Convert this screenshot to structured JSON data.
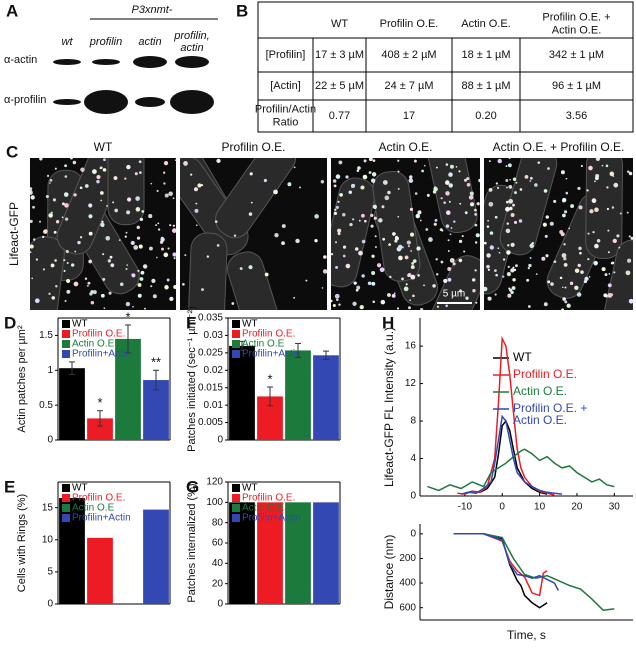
{
  "panel_a": {
    "panel": "A",
    "promoter": "P3xnmt-",
    "lanes": [
      "wt",
      "profilin",
      "actin",
      "profilin, actin"
    ],
    "rows": [
      "α-actin",
      "α-profilin"
    ]
  },
  "panel_b": {
    "panel": "B",
    "header": [
      "WT",
      "Profilin O.E.",
      "Actin O.E.",
      "Profilin O.E. + Actin O.E."
    ],
    "rows": [
      [
        "[Profilin]",
        "17 ± 3 µM",
        "408 ± 2 µM",
        "18 ± 1 µM",
        "342 ± 1 µM"
      ],
      [
        "[Actin]",
        "22 ± 5 µM",
        "24 ± 7 µM",
        "88 ± 1 µM",
        "96 ± 1 µM"
      ],
      [
        "Profilin/Actin Ratio",
        "0.77",
        "17",
        "0.20",
        "3.56"
      ]
    ]
  },
  "panel_c": {
    "panel": "C",
    "titles": [
      "WT",
      "Profilin O.E.",
      "Actin O.E.",
      "Actin O.E. + Profilin O.E."
    ],
    "ylabel": "Lifeact-GFP",
    "scale_bar": "5 µm"
  },
  "chart_data": [
    {
      "panel": "D",
      "type": "bar",
      "ylabel": "Actin patches per µm²",
      "categories": [
        "WT",
        "Profilin O.E.",
        "Actin O.E",
        "Profilin+Actin"
      ],
      "colors": [
        "#000000",
        "#ed1c24",
        "#1b7a3c",
        "#3348b3"
      ],
      "values": [
        1.03,
        0.31,
        1.45,
        0.86
      ],
      "errors": [
        0.09,
        0.11,
        0.2,
        0.14
      ],
      "annotations": [
        null,
        "*",
        "*",
        "**"
      ],
      "ylim": [
        0,
        1.75
      ],
      "yticks": [
        0,
        0.5,
        1,
        1.5
      ],
      "legend": "upper left"
    },
    {
      "panel": "E",
      "type": "bar",
      "ylabel": "Cells with Rings (%)",
      "categories": [
        "WT",
        "Profilin O.E.",
        "Actin O.E",
        "Profilin+Actin"
      ],
      "colors": [
        "#000000",
        "#ed1c24",
        "#1b7a3c",
        "#3348b3"
      ],
      "values": [
        16.5,
        10.3,
        null,
        14.7
      ],
      "ylim": [
        0,
        19
      ],
      "yticks": [
        0,
        5,
        10,
        15
      ],
      "legend": "upper left"
    },
    {
      "panel": "F",
      "type": "bar",
      "ylabel": "Patches initiated (sec⁻¹ µm⁻²)",
      "categories": [
        "WT",
        "Profilin O.E.",
        "Actin O.E",
        "Profilin+Actin"
      ],
      "colors": [
        "#000000",
        "#ed1c24",
        "#1b7a3c",
        "#3348b3"
      ],
      "values": [
        0.027,
        0.0125,
        0.0257,
        0.0243
      ],
      "errors": [
        0.0013,
        0.0027,
        0.002,
        0.0012
      ],
      "annotations": [
        null,
        "*",
        null,
        null
      ],
      "ylim": [
        0,
        0.035
      ],
      "yticks": [
        0,
        0.005,
        0.01,
        0.015,
        0.02,
        0.025,
        0.03,
        0.035
      ],
      "legend": "upper left"
    },
    {
      "panel": "G",
      "type": "bar",
      "ylabel": "Patches internalized (%)",
      "categories": [
        "WT",
        "Profilin O.E.",
        "Actin O.E",
        "Profilin+Actin"
      ],
      "colors": [
        "#000000",
        "#ed1c24",
        "#1b7a3c",
        "#3348b3"
      ],
      "values": [
        100,
        100,
        100,
        100
      ],
      "ylim": [
        0,
        120
      ],
      "yticks": [
        0,
        20,
        40,
        60,
        80,
        100,
        120
      ],
      "legend": "upper left"
    },
    {
      "panel": "H",
      "type": "line",
      "ylabel": "Lifeact-GFP FL Intensity (a.u.)",
      "xlim": [
        -22,
        35
      ],
      "xticks": [
        -10,
        0,
        10,
        20,
        30
      ],
      "ylim": [
        0,
        19
      ],
      "yticks": [
        0,
        4,
        8,
        12,
        16
      ],
      "legend": "upper right",
      "series": [
        {
          "name": "WT",
          "color": "#000000",
          "x": [
            -10,
            -8,
            -6,
            -4,
            -2,
            -1,
            0,
            1,
            2,
            3,
            4,
            6,
            8,
            10,
            12
          ],
          "values": [
            0.3,
            0.5,
            0.4,
            0.8,
            2,
            4.5,
            7.5,
            8,
            7,
            5,
            3,
            1.5,
            0.8,
            0.4,
            0.2
          ]
        },
        {
          "name": "Profilin O.E.",
          "color": "#ed1c24",
          "x": [
            -12,
            -10,
            -8,
            -6,
            -4,
            -2,
            -1,
            0,
            1,
            2,
            3,
            4,
            5,
            6,
            8,
            10,
            12,
            14
          ],
          "values": [
            0.3,
            0.2,
            0.5,
            0.4,
            1,
            4,
            10,
            16.8,
            16,
            13,
            9,
            5,
            3,
            2,
            1,
            0.5,
            0.3,
            0.1
          ]
        },
        {
          "name": "Actin O.E.",
          "color": "#1b7a3c",
          "x": [
            -20,
            -17,
            -14,
            -11,
            -8,
            -5,
            -3,
            -1,
            1,
            3,
            5,
            6,
            8,
            10,
            12,
            14,
            16,
            18,
            20,
            22,
            24,
            26,
            28,
            30
          ],
          "values": [
            1,
            0.6,
            1.2,
            0.8,
            1.5,
            1,
            2.5,
            3,
            3.5,
            4.2,
            4.8,
            5,
            4.5,
            3.8,
            4.2,
            3.5,
            3,
            3.2,
            2.5,
            2,
            1.5,
            1.8,
            1.2,
            1
          ]
        },
        {
          "name": "Profilin O.E. + Actin O.E.",
          "color": "#3348b3",
          "x": [
            -11,
            -9,
            -7,
            -5,
            -3,
            -2,
            -1,
            0,
            1,
            2,
            3,
            4,
            6,
            8,
            10,
            12,
            14,
            16
          ],
          "values": [
            0.2,
            0.4,
            0.3,
            0.8,
            1.5,
            3.5,
            6,
            8.5,
            8,
            6,
            4,
            2.5,
            1.5,
            1,
            0.6,
            0.4,
            0.3,
            0.2
          ]
        }
      ]
    },
    {
      "type": "line",
      "xlabel": "Time, s",
      "ylabel": "Distance (nm)",
      "xlim": [
        -22,
        35
      ],
      "ylim": [
        -80,
        700
      ],
      "y_inverted": true,
      "yticks": [
        0,
        200,
        400,
        600
      ],
      "series": [
        {
          "color": "#000000",
          "x": [
            -13,
            -5,
            0,
            2,
            4,
            5,
            6,
            8,
            10,
            12
          ],
          "values": [
            0,
            0,
            40,
            250,
            380,
            420,
            500,
            560,
            600,
            560
          ]
        },
        {
          "color": "#ed1c24",
          "x": [
            -13,
            -5,
            0,
            2,
            4,
            6,
            8,
            10,
            11,
            12
          ],
          "values": [
            0,
            0,
            60,
            220,
            300,
            350,
            480,
            500,
            320,
            300
          ]
        },
        {
          "color": "#1b7a3c",
          "x": [
            -13,
            -5,
            0,
            3,
            6,
            9,
            12,
            15,
            18,
            21,
            24,
            27,
            30
          ],
          "values": [
            0,
            0,
            30,
            200,
            330,
            360,
            340,
            380,
            420,
            450,
            530,
            620,
            610
          ]
        },
        {
          "color": "#3348b3",
          "x": [
            -13,
            -5,
            0,
            2,
            4,
            6,
            8,
            10,
            12,
            14,
            15
          ],
          "values": [
            0,
            0,
            50,
            240,
            330,
            340,
            360,
            340,
            370,
            400,
            460
          ]
        }
      ]
    }
  ]
}
